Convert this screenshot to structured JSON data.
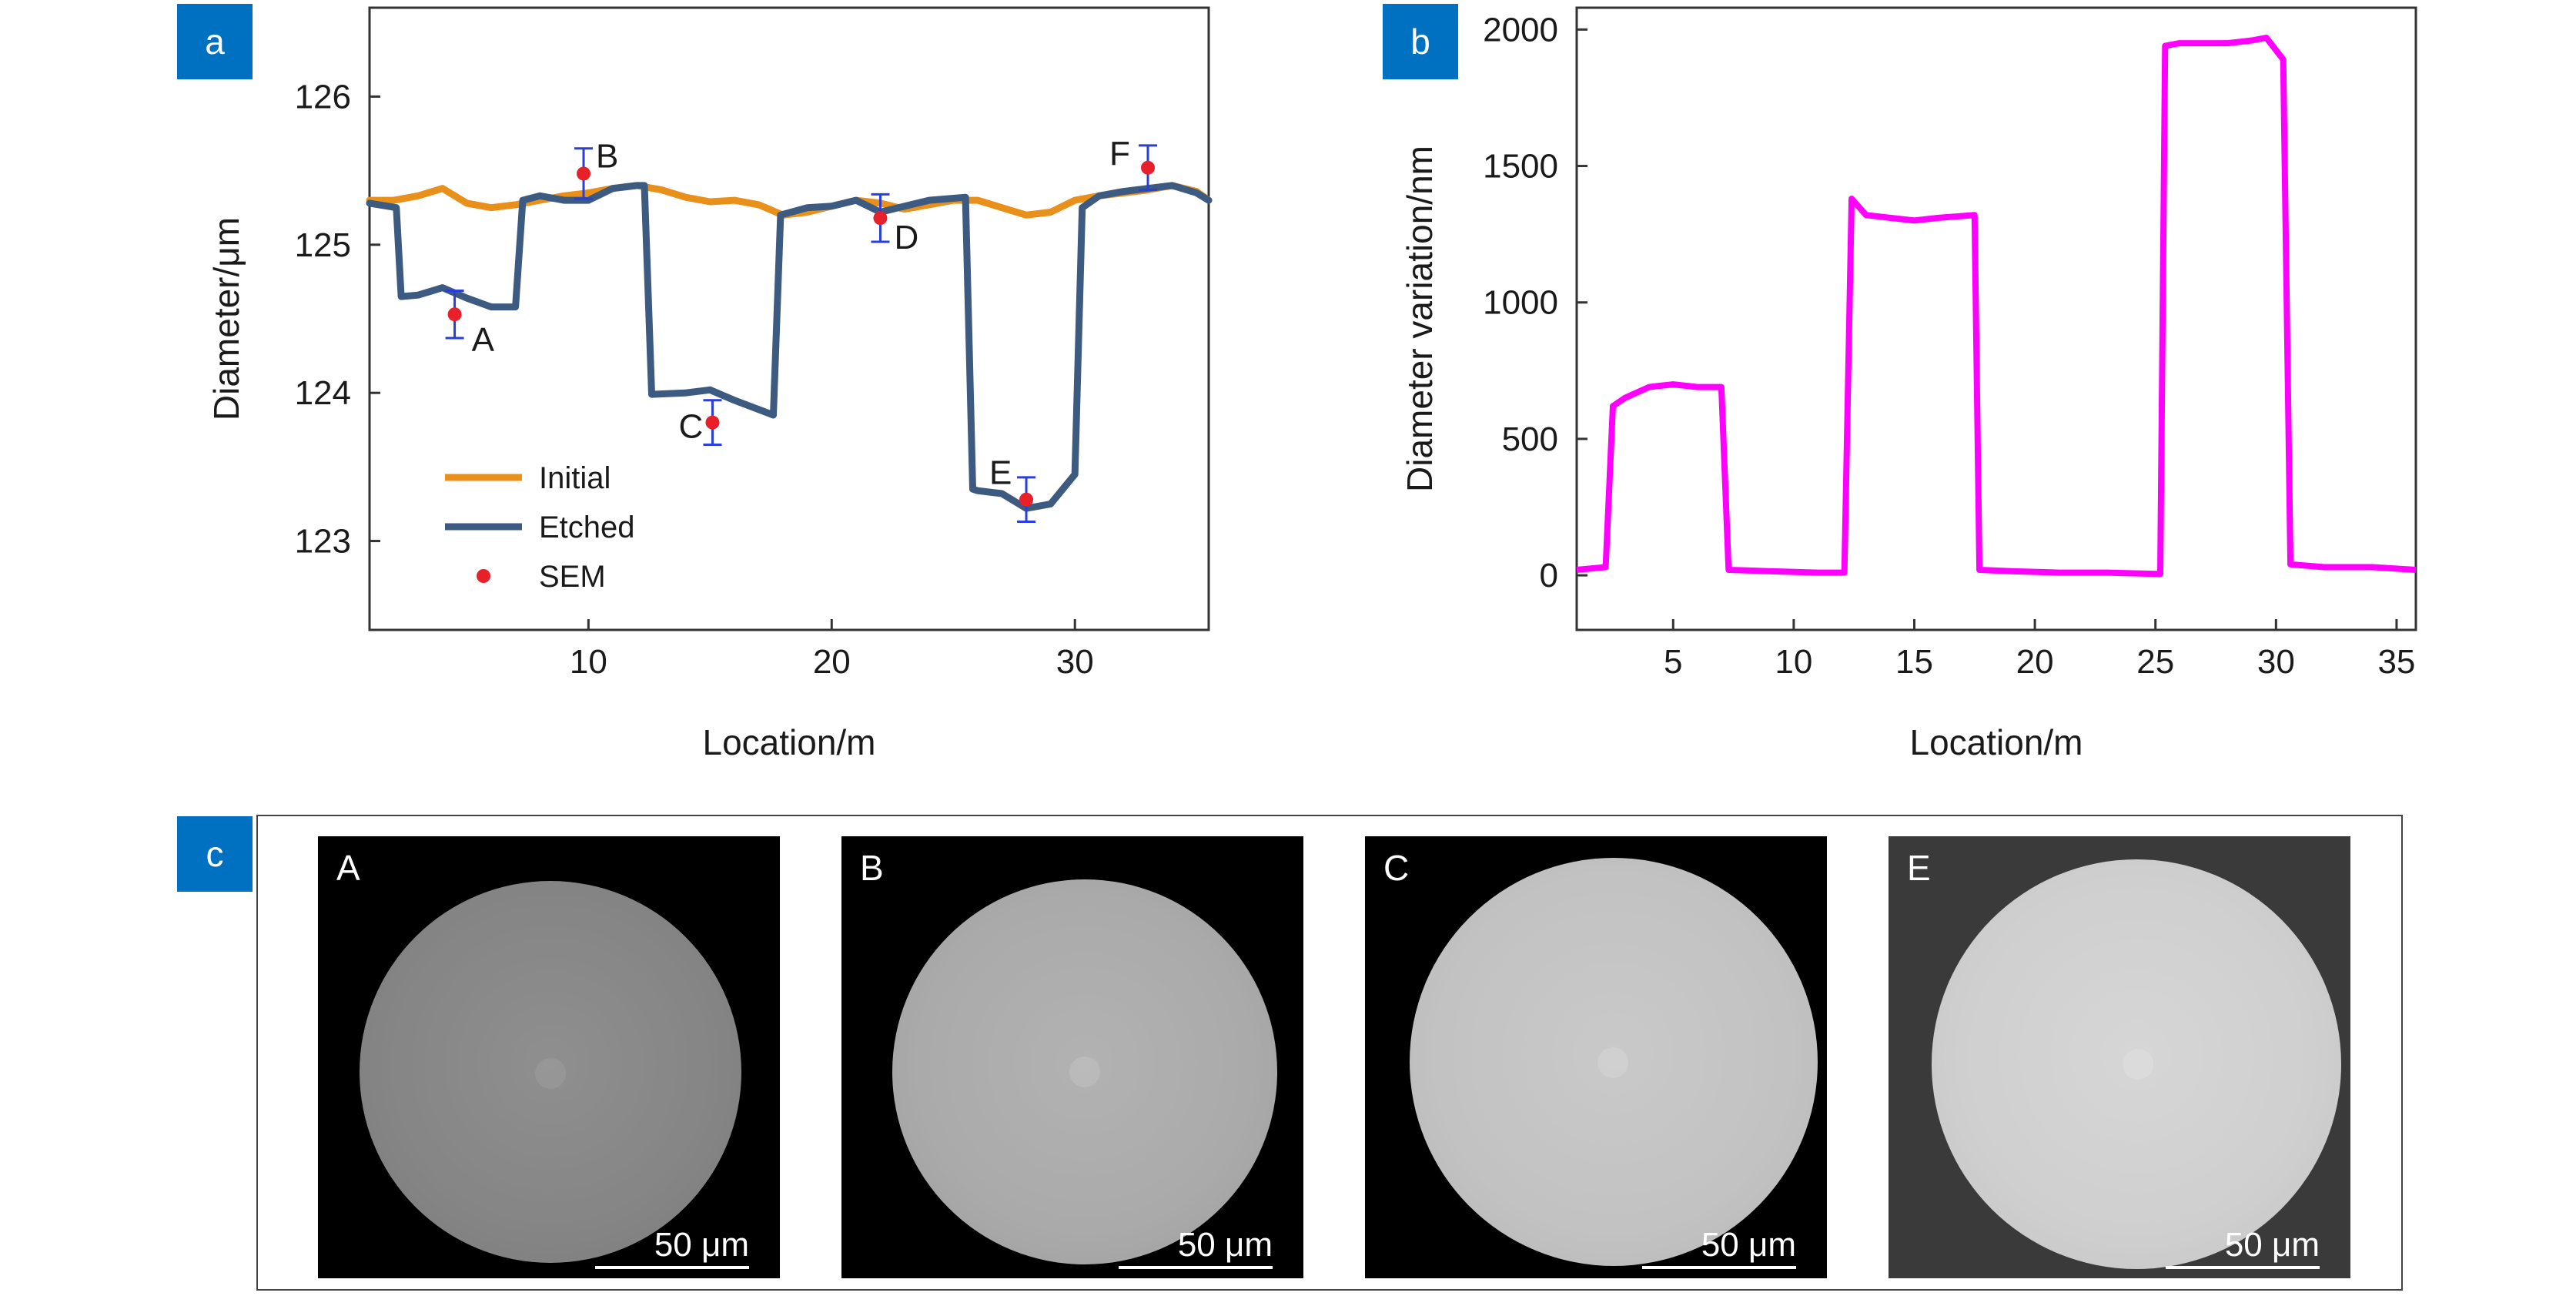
{
  "panels": {
    "a": "a",
    "b": "b",
    "c": "c"
  },
  "chart_data": [
    {
      "type": "line",
      "panel": "a",
      "title": "",
      "xlabel": "Location/m",
      "ylabel": "Diameter/μm",
      "xlim": [
        1,
        35.5
      ],
      "ylim": [
        122.4,
        126.6
      ],
      "xticks": [
        10,
        20,
        30
      ],
      "yticks": [
        123,
        124,
        125,
        126
      ],
      "legend_position": "bottom-left",
      "series": [
        {
          "name": "Initial",
          "color": "#E8901A",
          "x": [
            1,
            2,
            3,
            4,
            5,
            6,
            7,
            8,
            9,
            10,
            11,
            12,
            13,
            14,
            15,
            16,
            17,
            18,
            19,
            20,
            21,
            22,
            23,
            24,
            25,
            26,
            27,
            28,
            29,
            30,
            31,
            32,
            33,
            34,
            35,
            35.5
          ],
          "y": [
            125.3,
            125.3,
            125.33,
            125.38,
            125.28,
            125.25,
            125.27,
            125.3,
            125.33,
            125.35,
            125.38,
            125.4,
            125.37,
            125.32,
            125.29,
            125.3,
            125.27,
            125.2,
            125.22,
            125.26,
            125.3,
            125.28,
            125.24,
            125.27,
            125.3,
            125.3,
            125.25,
            125.2,
            125.22,
            125.3,
            125.33,
            125.35,
            125.37,
            125.4,
            125.36,
            125.3
          ]
        },
        {
          "name": "Etched",
          "color": "#3D5A80",
          "x": [
            1,
            2.1,
            2.3,
            3,
            4,
            5,
            6,
            7,
            7.3,
            8,
            9,
            10,
            11,
            12,
            12.3,
            12.6,
            14,
            15,
            16,
            17.6,
            17.9,
            19,
            20,
            21,
            22,
            23,
            24,
            25.5,
            25.8,
            26,
            27,
            28,
            29,
            30,
            30.3,
            31,
            32,
            33,
            34,
            35,
            35.5
          ],
          "y": [
            125.28,
            125.25,
            124.65,
            124.66,
            124.71,
            124.64,
            124.58,
            124.58,
            125.3,
            125.33,
            125.3,
            125.3,
            125.38,
            125.4,
            125.4,
            123.99,
            124.0,
            124.02,
            123.95,
            123.85,
            125.2,
            125.25,
            125.26,
            125.3,
            125.22,
            125.26,
            125.3,
            125.32,
            123.35,
            123.34,
            123.32,
            123.22,
            123.25,
            123.45,
            125.25,
            125.33,
            125.36,
            125.38,
            125.4,
            125.35,
            125.3
          ]
        },
        {
          "name": "SEM",
          "type": "scatter",
          "color": "#E8202A",
          "points": [
            {
              "label": "A",
              "x": 4.5,
              "y": 124.53,
              "err": 0.16
            },
            {
              "label": "B",
              "x": 9.8,
              "y": 125.48,
              "err": 0.17
            },
            {
              "label": "C",
              "x": 15.1,
              "y": 123.8,
              "err": 0.15
            },
            {
              "label": "D",
              "x": 22,
              "y": 125.18,
              "err": 0.16
            },
            {
              "label": "E",
              "x": 28,
              "y": 123.28,
              "err": 0.15
            },
            {
              "label": "F",
              "x": 33,
              "y": 125.52,
              "err": 0.15
            }
          ]
        }
      ]
    },
    {
      "type": "line",
      "panel": "b",
      "title": "",
      "xlabel": "Location/m",
      "ylabel": "Diameter variation/nm",
      "xlim": [
        1,
        35.8
      ],
      "ylim": [
        -200,
        2080
      ],
      "xticks": [
        5,
        10,
        15,
        20,
        25,
        30,
        35
      ],
      "yticks": [
        0,
        500,
        1000,
        1500,
        2000
      ],
      "series": [
        {
          "name": "",
          "color": "#FF00FF",
          "x": [
            1,
            2.2,
            2.5,
            3,
            4,
            5,
            6,
            7,
            7.3,
            9,
            11,
            12.1,
            12.4,
            13,
            14,
            15,
            16,
            17.5,
            17.7,
            19,
            21,
            23,
            25.2,
            25.4,
            26,
            27,
            28,
            29,
            29.6,
            30.3,
            30.6,
            32,
            34,
            35.8
          ],
          "y": [
            20,
            30,
            620,
            650,
            690,
            700,
            690,
            690,
            20,
            15,
            10,
            10,
            1380,
            1320,
            1310,
            1300,
            1310,
            1320,
            20,
            15,
            10,
            10,
            5,
            1940,
            1950,
            1950,
            1950,
            1960,
            1970,
            1890,
            40,
            30,
            30,
            20
          ]
        }
      ]
    }
  ],
  "sem_images": [
    {
      "label": "A",
      "scale": "50 μm"
    },
    {
      "label": "B",
      "scale": "50 μm"
    },
    {
      "label": "C",
      "scale": "50 μm"
    },
    {
      "label": "E",
      "scale": "50 μm"
    }
  ]
}
